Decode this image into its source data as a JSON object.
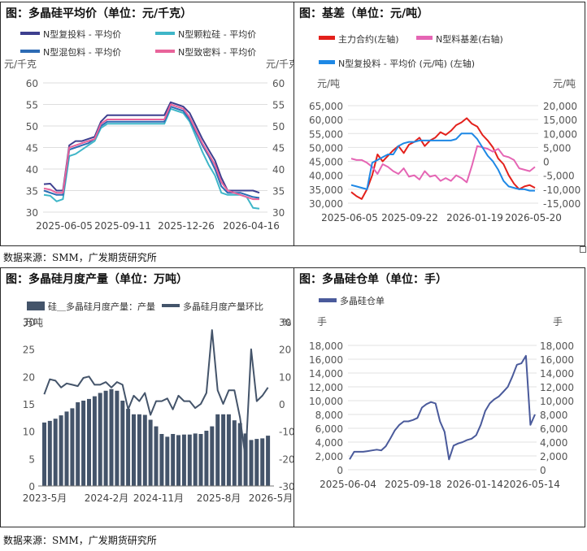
{
  "source_note": "数据来源：SMM，广发期货研究所",
  "chart_data": [
    {
      "id": "avg_price",
      "type": "line",
      "title": "图：多晶硅平均价（单位：元/千克）",
      "ylabel": "元/千克",
      "ylabel_right": "元/千克",
      "ylim": [
        30,
        60
      ],
      "yticks": [
        30,
        35,
        40,
        45,
        50,
        55,
        60
      ],
      "x_tick_labels": [
        "2025-06-05",
        "2025-09-11",
        "2025-12-26",
        "2026-04-16"
      ],
      "series": [
        {
          "name": "N型复投料 - 平均价",
          "color": "#3d3f8f",
          "values": [
            36.5,
            36.6,
            35.0,
            35.0,
            45.5,
            46.5,
            46.5,
            47.0,
            47.5,
            51.0,
            52.5,
            52.5,
            52.5,
            52.5,
            52.5,
            52.5,
            52.5,
            52.5,
            52.5,
            52.5,
            55.5,
            55.0,
            54.5,
            53.0,
            50.0,
            47.0,
            44.5,
            42.0,
            38.0,
            35.0,
            35.0,
            35.0,
            35.0,
            35.0,
            34.5
          ]
        },
        {
          "name": "N型颗粒硅 - 平均价",
          "color": "#3fb6c8",
          "values": [
            34.0,
            33.8,
            32.5,
            33.0,
            43.0,
            43.5,
            44.5,
            45.5,
            46.5,
            49.5,
            50.5,
            50.5,
            50.5,
            50.5,
            50.5,
            50.5,
            50.5,
            50.5,
            50.5,
            50.5,
            54.0,
            53.5,
            53.0,
            51.0,
            47.5,
            44.0,
            41.0,
            38.5,
            34.5,
            34.0,
            34.0,
            34.0,
            33.5,
            31.0,
            30.8
          ]
        },
        {
          "name": "N型混包料 - 平均价",
          "color": "#2d6bb4",
          "values": [
            35.0,
            34.5,
            34.0,
            34.0,
            44.5,
            45.0,
            45.5,
            46.0,
            47.0,
            50.0,
            51.0,
            51.0,
            51.0,
            51.0,
            51.0,
            51.0,
            51.0,
            51.0,
            51.0,
            51.0,
            54.5,
            54.0,
            53.5,
            51.5,
            48.5,
            45.5,
            43.0,
            40.0,
            36.0,
            34.5,
            34.5,
            34.5,
            34.0,
            33.5,
            33.3
          ]
        },
        {
          "name": "N型致密料 - 平均价",
          "color": "#e8639a",
          "values": [
            35.5,
            35.2,
            34.5,
            34.5,
            45.0,
            45.5,
            46.0,
            46.5,
            47.0,
            50.5,
            51.5,
            51.5,
            51.5,
            51.5,
            51.5,
            51.5,
            51.5,
            51.5,
            51.5,
            51.5,
            55.0,
            54.5,
            54.0,
            52.0,
            49.0,
            46.0,
            43.5,
            41.0,
            37.0,
            35.0,
            34.5,
            34.0,
            33.5,
            33.0,
            33.0
          ]
        }
      ]
    },
    {
      "id": "basis",
      "type": "line",
      "title": "图：基差（单位：元/吨）",
      "ylabel": "元/吨",
      "ylabel_right": "元/吨",
      "ylim_left": [
        30000,
        65000
      ],
      "yticks_left": [
        30000,
        35000,
        40000,
        45000,
        50000,
        55000,
        60000,
        65000
      ],
      "ytick_labels_left": [
        "30,000",
        "35,000",
        "40,000",
        "45,000",
        "50,000",
        "55,000",
        "60,000",
        "65,000"
      ],
      "ylim_right": [
        -15000,
        20000
      ],
      "yticks_right": [
        -15000,
        -10000,
        -5000,
        0,
        5000,
        10000,
        15000,
        20000
      ],
      "ytick_labels_right": [
        "-15,000",
        "-10,000",
        "-5,000",
        "0",
        "5,000",
        "10,000",
        "15,000",
        "20,000"
      ],
      "x_tick_labels": [
        "2025-06-05",
        "2025-09-22",
        "2026-01-19",
        "2026-05-20"
      ],
      "series": [
        {
          "name": "主力合约(左轴)",
          "color": "#e3201b",
          "axis": "left",
          "values": [
            34000,
            32500,
            31500,
            35000,
            40000,
            47500,
            45000,
            47000,
            49000,
            50500,
            48000,
            51000,
            52000,
            53500,
            50500,
            52500,
            53500,
            55500,
            54500,
            56000,
            58000,
            59000,
            60500,
            58500,
            57500,
            54500,
            52500,
            50000,
            46000,
            44000,
            40000,
            37000,
            35000,
            36000,
            36500,
            35500
          ]
        },
        {
          "name": "N型料基差(右轴)",
          "color": "#e565b4",
          "axis": "right",
          "values": [
            1000,
            500,
            500,
            -500,
            -2000,
            -4500,
            -1000,
            -2000,
            -3500,
            -4500,
            -2500,
            -5500,
            -5000,
            -6500,
            -3500,
            -5500,
            -5000,
            -7000,
            -6000,
            -7000,
            -5000,
            -6000,
            -7500,
            -1500,
            5500,
            5000,
            4500,
            3500,
            4500,
            2000,
            1500,
            500,
            -2500,
            -3000,
            -3500,
            -2000
          ]
        },
        {
          "name": "N型复投料 - 平均价 (元/吨) (左轴)",
          "color": "#1e88e5",
          "axis": "left",
          "values": [
            36500,
            36000,
            35500,
            35000,
            44500,
            45500,
            46500,
            47500,
            47500,
            50500,
            51500,
            52000,
            52000,
            52500,
            52500,
            52500,
            52500,
            52500,
            52500,
            52500,
            53000,
            55000,
            55000,
            55000,
            53000,
            50000,
            47000,
            45000,
            42000,
            38000,
            36000,
            35500,
            35000,
            35000,
            34500,
            34500
          ]
        }
      ]
    },
    {
      "id": "monthly_output",
      "type": "bar",
      "title": "图：多晶硅月度产量（单位：万吨）",
      "ylabel": "万吨",
      "ylabel_right": "%",
      "ylim_left": [
        0,
        30
      ],
      "yticks_left": [
        0,
        5,
        10,
        15,
        20,
        25,
        30
      ],
      "ylim_right": [
        -30,
        30
      ],
      "yticks_right": [
        -30,
        -20,
        -10,
        0,
        10,
        20,
        30
      ],
      "x_tick_labels": [
        "2023-5月",
        "2024-2月",
        "2024-11月",
        "2025-8月",
        "2026-5月"
      ],
      "series": [
        {
          "name": "硅＿多晶硅月度产量：产量",
          "color": "#44546a",
          "type": "bar",
          "axis": "left",
          "values": [
            11.6,
            11.9,
            12.3,
            12.9,
            13.6,
            14.2,
            15.3,
            15.6,
            15.9,
            16.4,
            17.0,
            17.4,
            17.7,
            17.4,
            15.6,
            14.1,
            13.1,
            13.1,
            13.0,
            12.1,
            10.9,
            9.5,
            9.0,
            9.5,
            9.3,
            9.4,
            9.4,
            9.6,
            9.5,
            10.1,
            10.9,
            13.1,
            13.1,
            13.1,
            12.0,
            11.5,
            9.6,
            8.4,
            8.6,
            8.7,
            9.2
          ]
        },
        {
          "name": "多晶硅月度产量环比",
          "color": "#44546a",
          "type": "line",
          "axis": "right",
          "values": [
            3.5,
            9,
            8.5,
            6,
            7.5,
            7,
            6.5,
            9.5,
            10,
            7,
            7,
            8,
            6,
            8,
            7,
            -2,
            3,
            1,
            4,
            -4,
            1,
            1,
            2,
            -2,
            3,
            1,
            1,
            -1.5,
            0,
            4,
            27,
            5,
            0,
            5,
            5,
            -5,
            -20,
            20,
            1,
            3,
            6
          ]
        }
      ]
    },
    {
      "id": "warehouse_receipts",
      "type": "line",
      "title": "图：多晶硅仓单（单位：手）",
      "ylabel": "手",
      "ylabel_right": "手",
      "ylim": [
        0,
        18000
      ],
      "yticks": [
        0,
        2000,
        4000,
        6000,
        8000,
        10000,
        12000,
        14000,
        16000,
        18000
      ],
      "ytick_labels": [
        "0",
        "2,000",
        "4,000",
        "6,000",
        "8,000",
        "10,000",
        "12,000",
        "14,000",
        "16,000",
        "18,000"
      ],
      "x_tick_labels": [
        "2025-06-04",
        "2025-09-18",
        "2026-01-14",
        "2026-05-14"
      ],
      "series": [
        {
          "name": "多晶硅仓单",
          "color": "#4a5a9b",
          "values": [
            1500,
            2600,
            2600,
            2600,
            2700,
            2800,
            2900,
            2800,
            3400,
            4500,
            5700,
            6500,
            7000,
            7000,
            7200,
            7500,
            9000,
            9500,
            9800,
            9600,
            7000,
            5500,
            1500,
            3500,
            3800,
            4000,
            4300,
            4500,
            5000,
            6500,
            8500,
            9600,
            10200,
            10600,
            11300,
            12000,
            13500,
            15200,
            15400,
            16500,
            6500,
            8000
          ]
        }
      ]
    }
  ]
}
